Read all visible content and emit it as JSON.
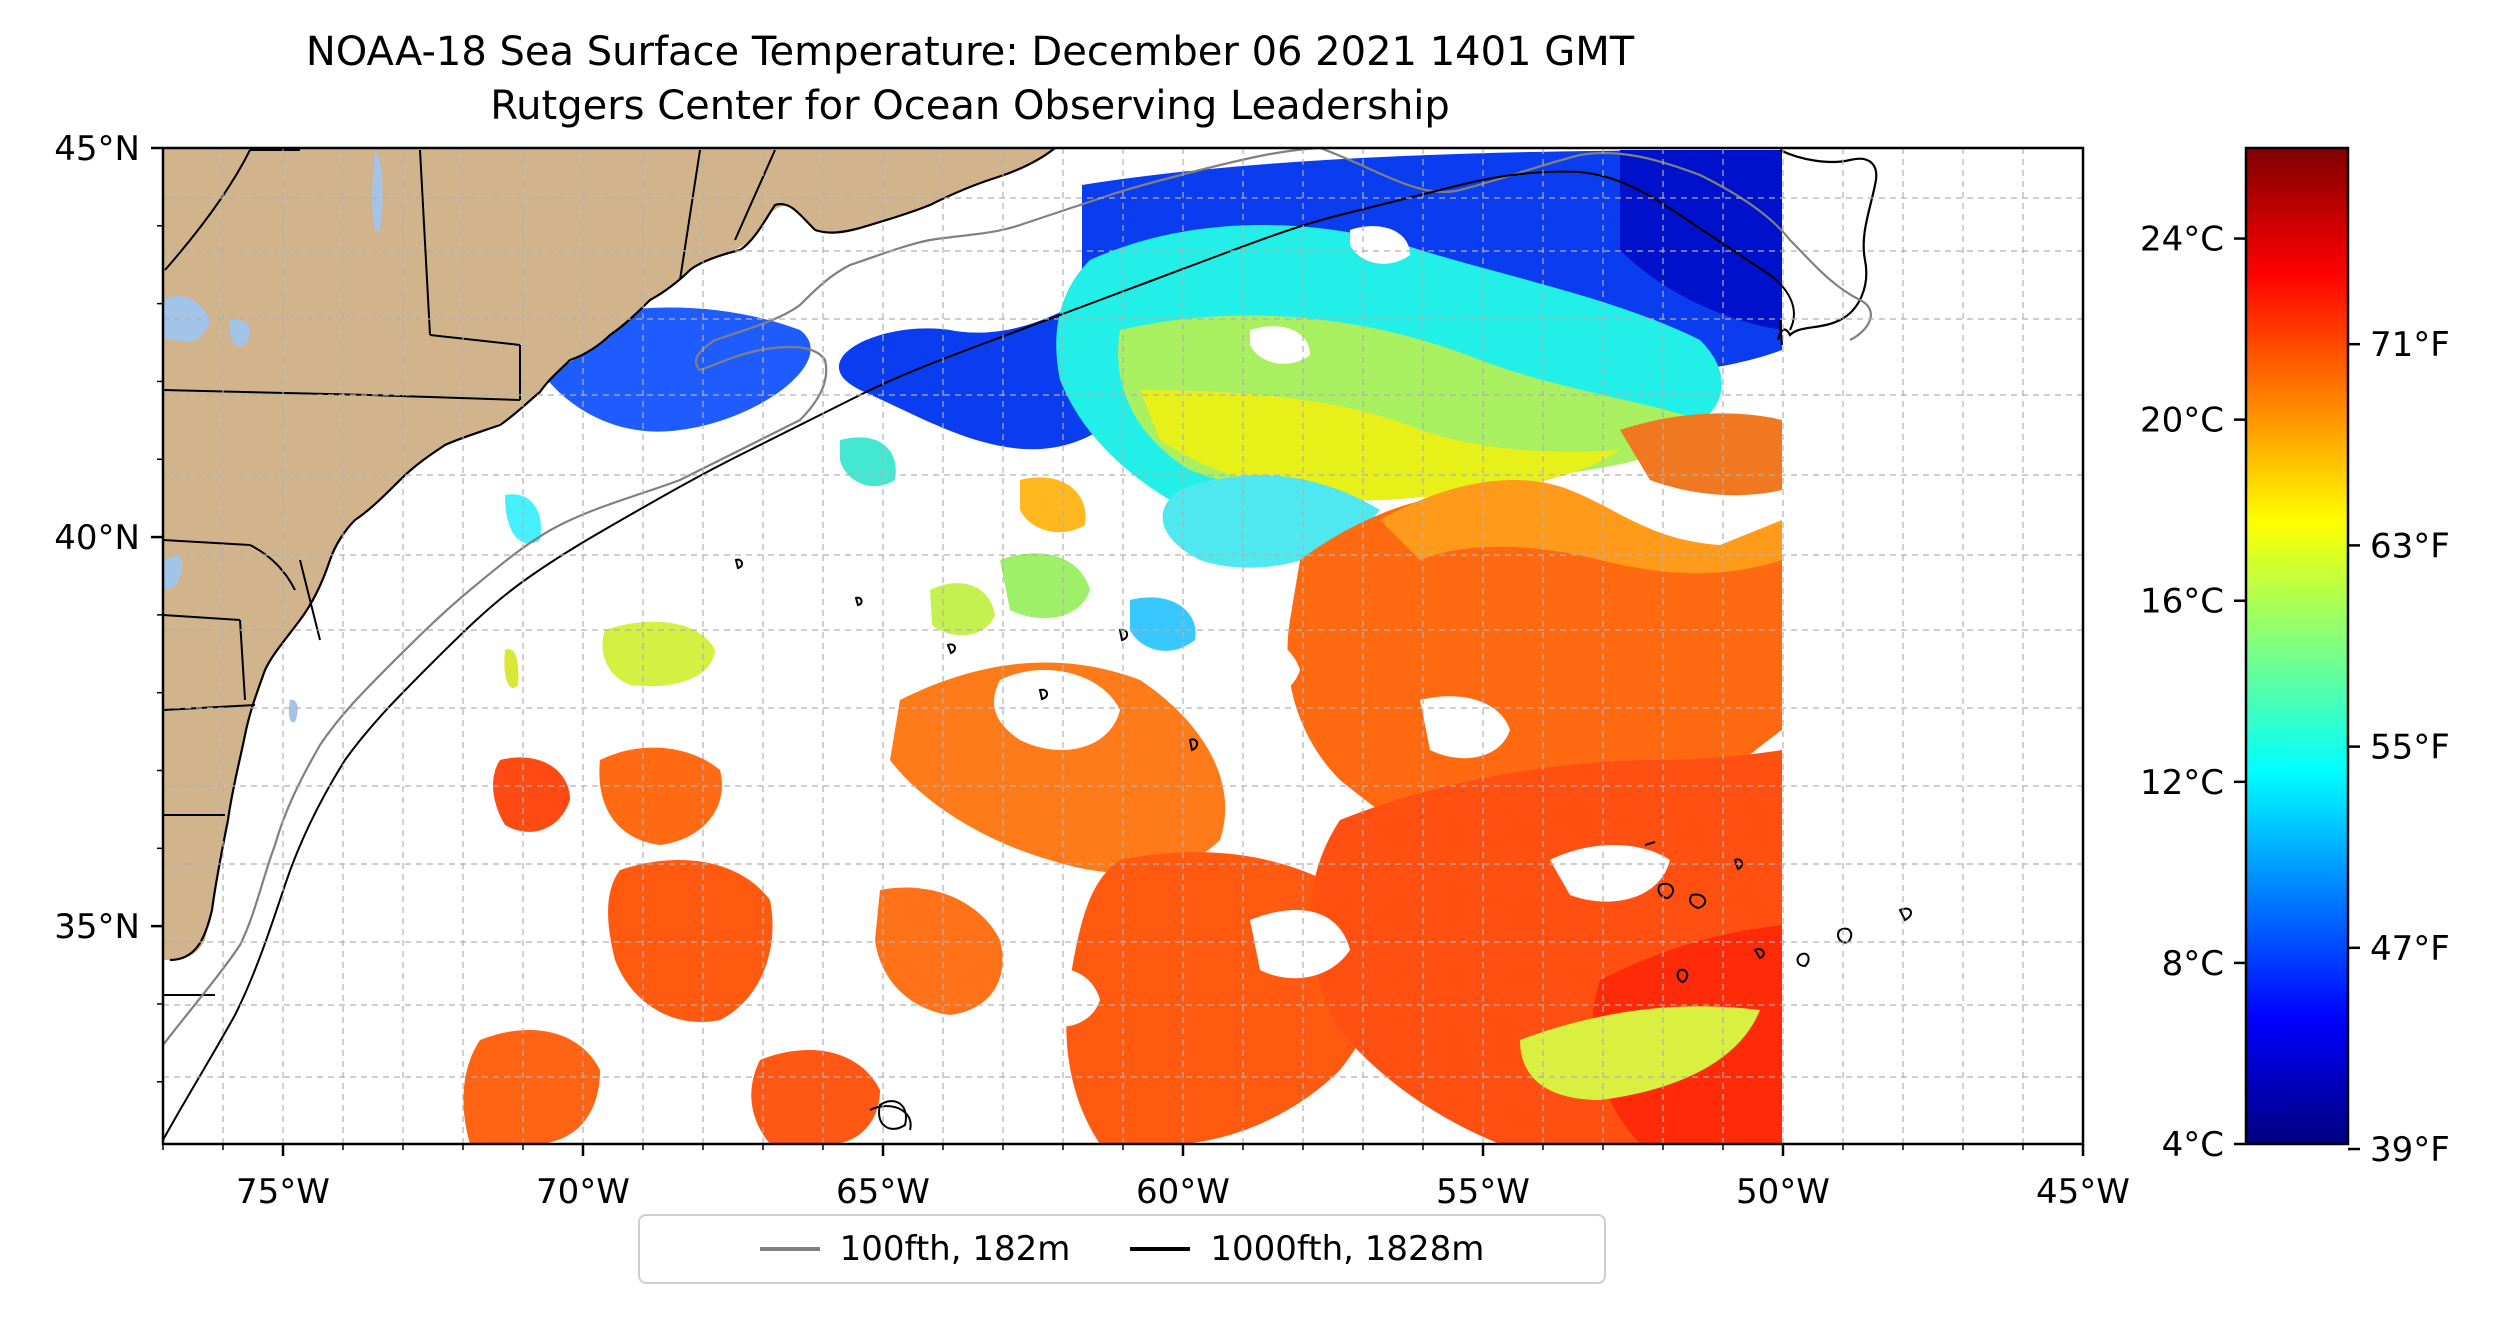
{
  "title": {
    "line1": "NOAA-18 Sea Surface Temperature: December 06 2021 1401 GMT",
    "line2": "Rutgers Center for Ocean Observing Leadership"
  },
  "axes": {
    "lon_ticks": [
      "75°W",
      "70°W",
      "65°W",
      "60°W",
      "55°W",
      "50°W",
      "45°W"
    ],
    "lon_values": [
      -75,
      -70,
      -65,
      -60,
      -55,
      -50,
      -45
    ],
    "lat_ticks": [
      "45°N",
      "40°N",
      "35°N"
    ],
    "lat_values": [
      45,
      40,
      35
    ],
    "lon_range": [
      -77,
      -45
    ],
    "lat_range": [
      32.2,
      45
    ]
  },
  "colorbar": {
    "celsius_ticks": [
      "24°C",
      "20°C",
      "16°C",
      "12°C",
      "8°C",
      "4°C"
    ],
    "celsius_values": [
      24,
      20,
      16,
      12,
      8,
      4
    ],
    "fahrenheit_ticks": [
      "71°F",
      "63°F",
      "55°F",
      "47°F",
      "39°F"
    ],
    "fahrenheit_values": [
      71,
      63,
      55,
      47,
      39
    ],
    "range_c": [
      4,
      26
    ],
    "colormap": [
      "#00007f",
      "#0000ff",
      "#007fff",
      "#00ffff",
      "#7fff7f",
      "#ffff00",
      "#ff7f00",
      "#ff0000",
      "#7f0000"
    ]
  },
  "legend": {
    "items": [
      {
        "label": "100fth, 182m",
        "color": "#808080"
      },
      {
        "label": "1000fth, 1828m",
        "color": "#000000"
      }
    ]
  },
  "colors": {
    "land": "#d2b48c",
    "lake": "#a4c3e8",
    "grid": "#b0b0b0"
  }
}
